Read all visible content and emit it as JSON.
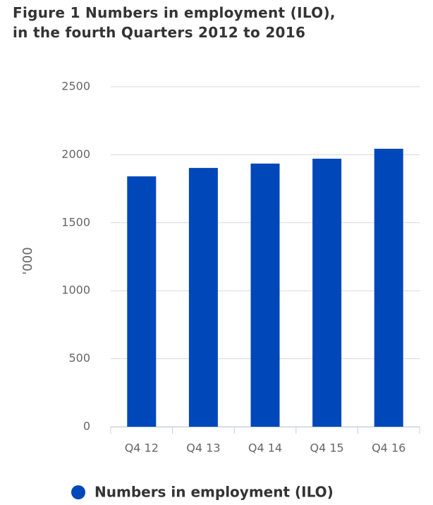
{
  "chart_data": {
    "type": "bar",
    "title": "Figure 1 Numbers in employment (ILO), in the fourth Quarters 2012 to 2016",
    "y_label": "'000",
    "categories": [
      "Q4 12",
      "Q4 13",
      "Q4 14",
      "Q4 15",
      "Q4 16"
    ],
    "series": [
      {
        "name": "Numbers in employment (ILO)",
        "color": "#0047ba",
        "values": [
          1841,
          1903,
          1935,
          1971,
          2044
        ]
      }
    ],
    "ylim": [
      0,
      2500
    ],
    "yticks": [
      0,
      500,
      1000,
      1500,
      2000,
      2500
    ],
    "grid": true,
    "legend": "bottom"
  }
}
